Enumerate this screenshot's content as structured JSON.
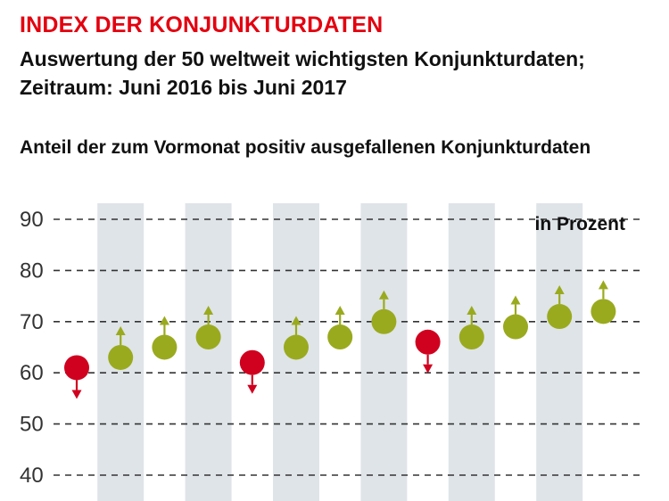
{
  "header": {
    "title": "INDEX DER KONJUNKTURDATEN",
    "subtitle_line1": "Auswertung der 50 weltweit wichtigsten Konjunkturdaten;",
    "subtitle_line2": "Zeitraum: Juni 2016 bis Juni 2017",
    "caption": "Anteil der zum Vormonat positiv ausgefallenen Konjunkturdaten"
  },
  "colors": {
    "title": "#e3000f",
    "positive": "#9aaa1e",
    "negative": "#d0001f",
    "band": "#dfe4e8",
    "grid": "#333333"
  },
  "chart_data": {
    "type": "scatter",
    "unit_label": "in Prozent",
    "y_ticks": [
      90,
      80,
      70,
      60,
      50,
      40
    ],
    "ylim": [
      40,
      90
    ],
    "grid": "dashed horizontal",
    "values": [
      61,
      63,
      65,
      67,
      62,
      65,
      67,
      70,
      66,
      67,
      69,
      71,
      72
    ],
    "direction": [
      "down",
      "up",
      "up",
      "up",
      "down",
      "up",
      "up",
      "up",
      "down",
      "up",
      "up",
      "up",
      "up"
    ],
    "shaded_positions": [
      1,
      3,
      5,
      7,
      9,
      11
    ]
  }
}
